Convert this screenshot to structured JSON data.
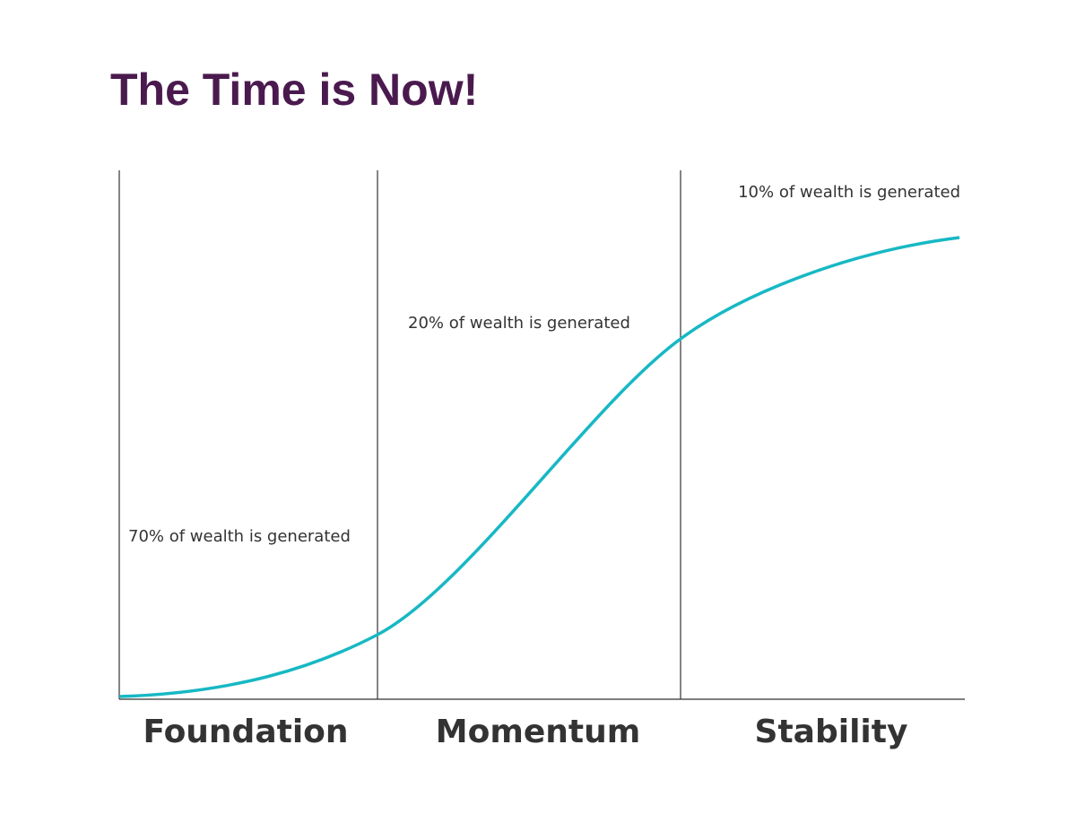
{
  "title": "The Time is Now!",
  "phases": [
    {
      "label": "Foundation",
      "note": "70% of wealth is generated"
    },
    {
      "label": "Momentum",
      "note": "20% of wealth is generated"
    },
    {
      "label": "Stability",
      "note": "10% of wealth is generated"
    }
  ]
}
